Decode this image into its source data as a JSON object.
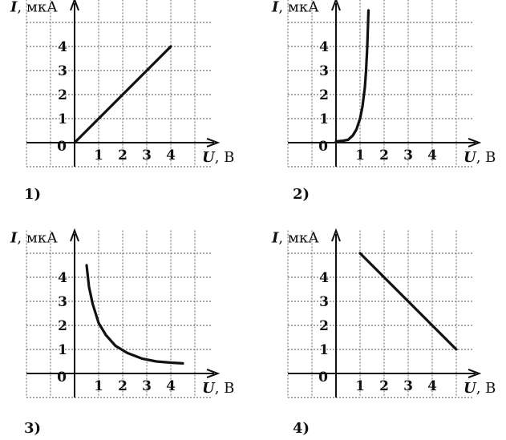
{
  "charts": [
    {
      "number": "1)",
      "type": "line",
      "y_label_var": "I",
      "y_label_unit": ", мкА",
      "x_label_var": "U",
      "x_label_unit": ", В",
      "origin_label": "0",
      "x_ticks": [
        "1",
        "2",
        "3",
        "4"
      ],
      "y_ticks": [
        "1",
        "2",
        "3",
        "4"
      ],
      "x": [
        0,
        4
      ],
      "y": [
        0,
        4
      ]
    },
    {
      "number": "2)",
      "type": "line",
      "y_label_var": "I",
      "y_label_unit": ", мкА",
      "x_label_var": "U",
      "x_label_unit": ", В",
      "origin_label": "0",
      "x_ticks": [
        "1",
        "2",
        "3",
        "4"
      ],
      "y_ticks": [
        "1",
        "2",
        "3",
        "4"
      ],
      "x": [
        0,
        0.3,
        0.5,
        0.7,
        0.85,
        1.0,
        1.1,
        1.2,
        1.25,
        1.3,
        1.35
      ],
      "y": [
        0.05,
        0.08,
        0.12,
        0.3,
        0.55,
        1.0,
        1.5,
        2.3,
        3.0,
        4.0,
        5.5
      ]
    },
    {
      "number": "3)",
      "type": "line",
      "y_label_var": "I",
      "y_label_unit": ", мкА",
      "x_label_var": "U",
      "x_label_unit": ", В",
      "origin_label": "0",
      "x_ticks": [
        "1",
        "2",
        "3",
        "4"
      ],
      "y_ticks": [
        "1",
        "2",
        "3",
        "4"
      ],
      "x": [
        0.5,
        0.6,
        0.75,
        1.0,
        1.3,
        1.7,
        2.2,
        2.8,
        3.4,
        4.0,
        4.5
      ],
      "y": [
        4.5,
        3.6,
        2.9,
        2.1,
        1.6,
        1.15,
        0.85,
        0.62,
        0.5,
        0.45,
        0.42
      ]
    },
    {
      "number": "4)",
      "type": "line",
      "y_label_var": "I",
      "y_label_unit": ", мкА",
      "x_label_var": "U",
      "x_label_unit": ", В",
      "origin_label": "0",
      "x_ticks": [
        "1",
        "2",
        "3",
        "4"
      ],
      "y_ticks": [
        "1",
        "2",
        "3",
        "4"
      ],
      "x": [
        1,
        5
      ],
      "y": [
        5,
        1
      ]
    }
  ],
  "chart_data": [
    {
      "type": "line",
      "x": [
        0,
        4
      ],
      "y": [
        0,
        4
      ],
      "xlabel": "U, В",
      "ylabel": "I, мкА",
      "xlim": [
        0,
        5.5
      ],
      "ylim": [
        0,
        5.5
      ]
    },
    {
      "type": "line",
      "x": [
        0,
        0.3,
        0.5,
        0.7,
        0.85,
        1.0,
        1.1,
        1.2,
        1.25,
        1.3,
        1.35
      ],
      "y": [
        0.05,
        0.08,
        0.12,
        0.3,
        0.55,
        1.0,
        1.5,
        2.3,
        3.0,
        4.0,
        5.5
      ],
      "xlabel": "U, В",
      "ylabel": "I, мкА",
      "xlim": [
        0,
        5.5
      ],
      "ylim": [
        0,
        5.5
      ]
    },
    {
      "type": "line",
      "x": [
        0.5,
        0.6,
        0.75,
        1.0,
        1.3,
        1.7,
        2.2,
        2.8,
        3.4,
        4.0,
        4.5
      ],
      "y": [
        4.5,
        3.6,
        2.9,
        2.1,
        1.6,
        1.15,
        0.85,
        0.62,
        0.5,
        0.45,
        0.42
      ],
      "xlabel": "U, В",
      "ylabel": "I, мкА",
      "xlim": [
        0,
        5.5
      ],
      "ylim": [
        0,
        5.5
      ]
    },
    {
      "type": "line",
      "x": [
        1,
        5
      ],
      "y": [
        5,
        1
      ],
      "xlabel": "U, В",
      "ylabel": "I, мкА",
      "xlim": [
        0,
        5.5
      ],
      "ylim": [
        0,
        5.5
      ]
    }
  ]
}
